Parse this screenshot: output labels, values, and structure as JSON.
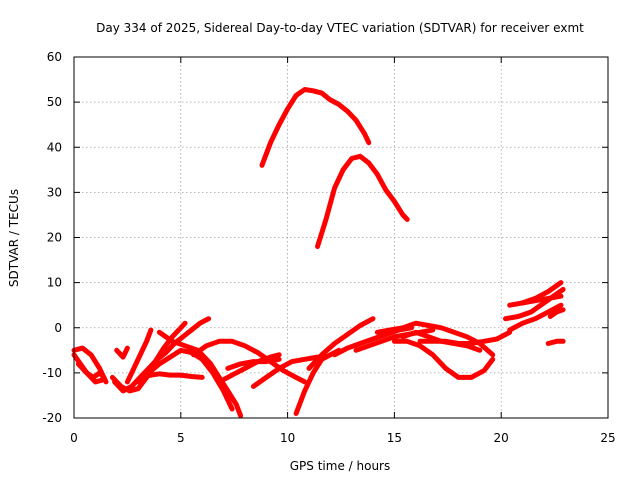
{
  "chart_data": {
    "type": "line",
    "title": "Day 334 of 2025, Sidereal Day-to-day VTEC variation (SDTVAR) for receiver exmt",
    "xlabel": "GPS time / hours",
    "ylabel": "SDTVAR / TECUs",
    "xlim": [
      0,
      25
    ],
    "ylim": [
      -20,
      60
    ],
    "xticks": [
      0,
      5,
      10,
      15,
      20,
      25
    ],
    "yticks": [
      -20,
      -10,
      0,
      10,
      20,
      30,
      40,
      50,
      60
    ],
    "xtick_labels": [
      "0",
      "5",
      "10",
      "15",
      "20",
      "25"
    ],
    "ytick_labels": [
      "-20",
      "-10",
      "0",
      "10",
      "20",
      "30",
      "40",
      "50",
      "60"
    ],
    "grid": true,
    "legend": "none",
    "color": "#ff0000",
    "series": [
      {
        "name": "arc-high",
        "x": [
          8.8,
          9.2,
          9.6,
          10.0,
          10.4,
          10.8,
          11.2,
          11.6,
          12.0,
          12.4,
          12.8,
          13.2,
          13.6,
          13.8
        ],
        "y": [
          36,
          41,
          45,
          48.5,
          51.5,
          52.8,
          52.5,
          52,
          50.5,
          49.5,
          48,
          46,
          43,
          41
        ]
      },
      {
        "name": "arc-mid",
        "x": [
          11.4,
          11.8,
          12.2,
          12.6,
          13.0,
          13.4,
          13.8,
          14.2,
          14.6,
          15.0,
          15.4,
          15.6
        ],
        "y": [
          18,
          24,
          31,
          35,
          37.5,
          38,
          36.5,
          34,
          30.5,
          28,
          25,
          24
        ]
      },
      {
        "name": "a1",
        "x": [
          0.0,
          0.3,
          0.6,
          0.9,
          1.2,
          1.4
        ],
        "y": [
          -6,
          -8,
          -10,
          -11,
          -10,
          -11
        ]
      },
      {
        "name": "a2",
        "x": [
          0.0,
          0.4,
          0.8,
          1.2,
          1.5
        ],
        "y": [
          -5,
          -4.5,
          -6,
          -9,
          -12
        ]
      },
      {
        "name": "a3",
        "x": [
          0.2,
          0.6,
          1.0,
          1.4
        ],
        "y": [
          -8,
          -10,
          -12,
          -11.5
        ]
      },
      {
        "name": "a4",
        "x": [
          1.8,
          2.2,
          2.6,
          3.0,
          3.4,
          3.8,
          4.2,
          4.6,
          5.0,
          5.2
        ],
        "y": [
          -11,
          -13,
          -14,
          -13.5,
          -11,
          -7.5,
          -4.5,
          -2,
          0,
          1
        ]
      },
      {
        "name": "a5",
        "x": [
          1.9,
          2.3,
          2.7,
          3.1,
          3.5,
          3.9,
          4.3,
          4.7,
          5.1,
          5.5,
          5.9,
          6.3
        ],
        "y": [
          -12,
          -14,
          -13,
          -11,
          -9,
          -7,
          -5.5,
          -3.5,
          -2,
          -0.5,
          1,
          2
        ]
      },
      {
        "name": "a6",
        "x": [
          2.5,
          2.8,
          3.1,
          3.4,
          3.6
        ],
        "y": [
          -12,
          -9,
          -6,
          -3,
          -0.5
        ]
      },
      {
        "name": "a7",
        "x": [
          2.0,
          2.3,
          2.5
        ],
        "y": [
          -5,
          -6.5,
          -4.5
        ]
      },
      {
        "name": "a8",
        "x": [
          3.0,
          3.5,
          4.0,
          4.5,
          5.0,
          5.5,
          6.0,
          6.5,
          7.0,
          7.4
        ],
        "y": [
          -12,
          -10,
          -8,
          -6.5,
          -5,
          -5.5,
          -7,
          -10,
          -14,
          -18
        ]
      },
      {
        "name": "a9",
        "x": [
          3.2,
          3.6,
          4.0,
          4.5,
          5.0,
          5.5,
          6.0
        ],
        "y": [
          -11,
          -10.5,
          -10.2,
          -10.5,
          -10.5,
          -10.8,
          -11
        ]
      },
      {
        "name": "a10",
        "x": [
          4.0,
          4.6,
          5.2,
          5.8,
          6.4,
          6.8,
          7.2,
          7.6,
          7.8
        ],
        "y": [
          -1,
          -3,
          -4,
          -5,
          -8,
          -11,
          -14,
          -17,
          -19.5
        ]
      },
      {
        "name": "a11",
        "x": [
          5.6,
          6.2,
          6.8,
          7.4,
          8.0,
          8.6,
          9.2,
          9.8,
          10.4,
          10.8
        ],
        "y": [
          -6,
          -4,
          -3,
          -3,
          -4,
          -5.5,
          -7.5,
          -9.5,
          -11,
          -12
        ]
      },
      {
        "name": "a12",
        "x": [
          6.8,
          7.4,
          8.0,
          8.6,
          9.2,
          9.6
        ],
        "y": [
          -12,
          -10.5,
          -9,
          -7.5,
          -6.5,
          -6
        ]
      },
      {
        "name": "a13",
        "x": [
          7.2,
          7.8,
          8.4,
          9.0,
          9.6
        ],
        "y": [
          -9,
          -8,
          -7.5,
          -7.5,
          -7
        ]
      },
      {
        "name": "a14",
        "x": [
          8.4,
          9.0,
          9.6,
          10.2,
          10.8,
          11.4
        ],
        "y": [
          -13,
          -11,
          -9,
          -7.5,
          -7,
          -6.5
        ]
      },
      {
        "name": "a15",
        "x": [
          10.4,
          10.8,
          11.2,
          11.6,
          12.0,
          12.4
        ],
        "y": [
          -19,
          -14,
          -10,
          -7,
          -6,
          -5
        ]
      },
      {
        "name": "a16",
        "x": [
          11.0,
          11.6,
          12.2,
          12.8,
          13.4,
          14.0
        ],
        "y": [
          -9,
          -6,
          -3.5,
          -1.5,
          0.5,
          2
        ]
      },
      {
        "name": "a17",
        "x": [
          12.2,
          12.8,
          13.4,
          14.0,
          14.6,
          15.2,
          15.8
        ],
        "y": [
          -6,
          -4.5,
          -3.5,
          -2.5,
          -1.5,
          -0.5,
          0
        ]
      },
      {
        "name": "a18",
        "x": [
          13.2,
          13.8,
          14.4,
          15.0,
          15.6,
          16.2,
          16.8
        ],
        "y": [
          -5,
          -4,
          -3,
          -2,
          -1.5,
          -1,
          -0.5
        ]
      },
      {
        "name": "a19",
        "x": [
          14.2,
          14.8,
          15.4,
          16.0,
          16.6,
          17.2,
          17.8,
          18.4,
          19.0,
          19.6
        ],
        "y": [
          -1,
          -0.5,
          0,
          1,
          0.5,
          0,
          -1,
          -2,
          -3.5,
          -6
        ]
      },
      {
        "name": "a20",
        "x": [
          15.0,
          15.6,
          16.2,
          16.8,
          17.4,
          18.0,
          18.6,
          19.2,
          19.6
        ],
        "y": [
          -3,
          -3,
          -4,
          -6,
          -9,
          -11,
          -11,
          -9.5,
          -7
        ]
      },
      {
        "name": "a21",
        "x": [
          15.4,
          16.0,
          16.6,
          17.2,
          17.8,
          18.4,
          19.0
        ],
        "y": [
          -2,
          -1,
          -2,
          -3,
          -3.5,
          -4,
          -5
        ]
      },
      {
        "name": "a22",
        "x": [
          16.2,
          16.8,
          17.4,
          18.0,
          18.6,
          19.2,
          19.8,
          20.4
        ],
        "y": [
          -3,
          -3,
          -3,
          -3.5,
          -3.5,
          -3,
          -2.5,
          -1
        ]
      },
      {
        "name": "a23",
        "x": [
          20.4,
          21.0,
          21.6,
          22.2,
          22.8
        ],
        "y": [
          -0.5,
          1,
          2,
          3.5,
          5
        ]
      },
      {
        "name": "a24",
        "x": [
          20.2,
          20.8,
          21.4,
          22.0,
          22.6,
          22.9
        ],
        "y": [
          2,
          2.5,
          3.5,
          5.5,
          7.5,
          8.5
        ]
      },
      {
        "name": "a25",
        "x": [
          20.4,
          21.0,
          21.6,
          22.2,
          22.8
        ],
        "y": [
          5,
          5.5,
          6.5,
          8,
          10
        ]
      },
      {
        "name": "a26",
        "x": [
          21.0,
          21.6,
          22.2,
          22.8
        ],
        "y": [
          5.5,
          6,
          6.5,
          7
        ]
      },
      {
        "name": "a27",
        "x": [
          22.2,
          22.6,
          22.9
        ],
        "y": [
          -3.5,
          -3,
          -3
        ]
      },
      {
        "name": "a28",
        "x": [
          22.3,
          22.6,
          22.9
        ],
        "y": [
          2.5,
          3.5,
          4
        ]
      }
    ]
  }
}
